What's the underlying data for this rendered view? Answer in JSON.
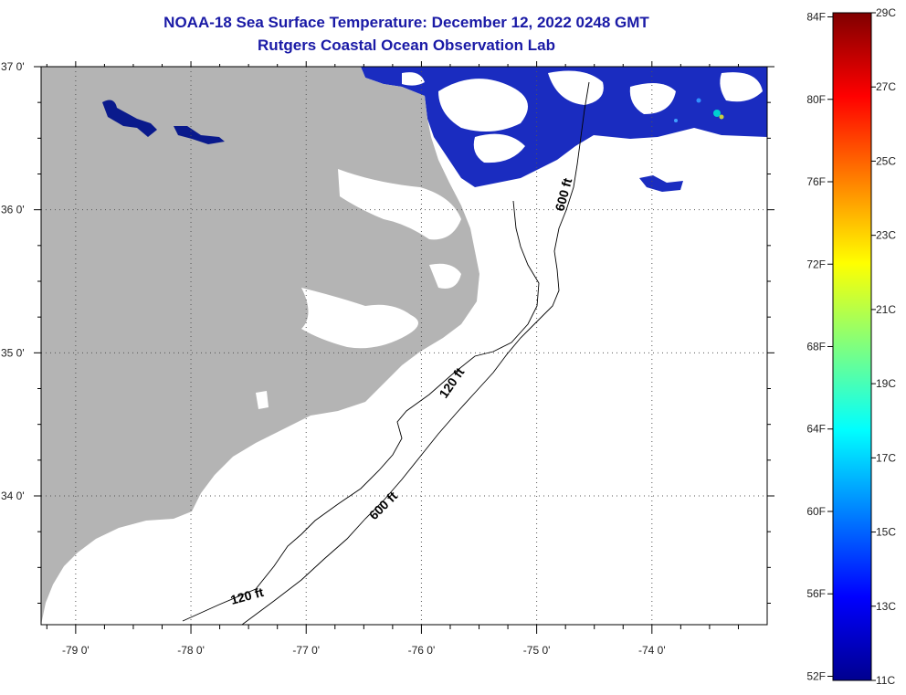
{
  "header": {
    "title_line1": "NOAA-18 Sea Surface Temperature:  December 12, 2022 0248 GMT",
    "title_line2": "Rutgers Coastal Ocean Observation Lab"
  },
  "map": {
    "lon_range": [
      -79.3,
      -73.0
    ],
    "lat_range": [
      33.1,
      37.0
    ],
    "lon_ticks": [
      {
        "value": -79,
        "label": "-79 0'"
      },
      {
        "value": -78,
        "label": "-78 0'"
      },
      {
        "value": -77,
        "label": "-77 0'"
      },
      {
        "value": -76,
        "label": "-76 0'"
      },
      {
        "value": -75,
        "label": "-75 0'"
      },
      {
        "value": -74,
        "label": "-74 0'"
      }
    ],
    "lat_ticks": [
      {
        "value": 37,
        "label": "37 0'"
      },
      {
        "value": 36,
        "label": "36 0'"
      },
      {
        "value": 35,
        "label": "35 0'"
      },
      {
        "value": 34,
        "label": "34 0'"
      }
    ],
    "isobaths": {
      "label_600_north": "600 ft",
      "label_600_south": "600 ft",
      "label_120_north": "120 ft",
      "label_120_south": "120 ft"
    },
    "colors": {
      "land": "#b4b4b4",
      "cloud_free_sst": "#1a2cc0",
      "inland_water": "#0a1a8c",
      "background": "#ffffff"
    }
  },
  "colorbar": {
    "min_c": 11,
    "max_c": 29,
    "fahrenheit_labels": [
      "84F",
      "80F",
      "76F",
      "72F",
      "68F",
      "64F",
      "60F",
      "56F",
      "52F"
    ],
    "celsius_labels": [
      "29C",
      "27C",
      "25C",
      "23C",
      "21C",
      "19C",
      "17C",
      "15C",
      "13C",
      "11C"
    ]
  }
}
